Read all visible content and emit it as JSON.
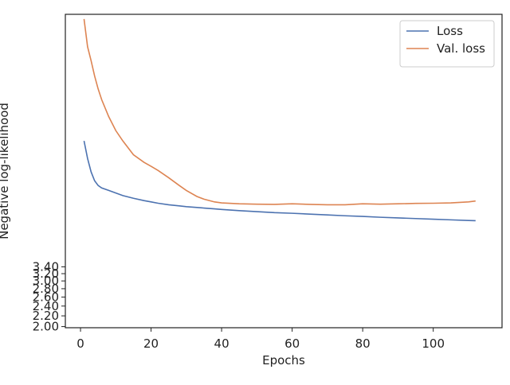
{
  "chart_data": {
    "type": "line",
    "x_label": "Epochs",
    "y_label": "Negative log-likelihood",
    "x": [
      1,
      2,
      3,
      4,
      5,
      6,
      8,
      10,
      12,
      15,
      18,
      20,
      22,
      25,
      28,
      30,
      33,
      35,
      38,
      40,
      45,
      50,
      55,
      60,
      65,
      70,
      75,
      80,
      85,
      90,
      95,
      100,
      105,
      110,
      112
    ],
    "series": [
      {
        "name": "Loss",
        "color": "#4c72b0",
        "values": [
          10.4,
          8.9,
          7.9,
          7.3,
          7.0,
          6.85,
          6.7,
          6.55,
          6.4,
          6.25,
          6.12,
          6.05,
          5.98,
          5.9,
          5.84,
          5.8,
          5.76,
          5.73,
          5.69,
          5.66,
          5.6,
          5.55,
          5.5,
          5.47,
          5.43,
          5.39,
          5.35,
          5.32,
          5.28,
          5.25,
          5.22,
          5.19,
          5.16,
          5.13,
          5.12
        ]
      },
      {
        "name": "Val. loss",
        "color": "#dd8452",
        "values": [
          30.7,
          24,
          21.2,
          18.5,
          16.5,
          15,
          12.9,
          11.4,
          10.4,
          9.2,
          8.6,
          8.3,
          8.0,
          7.5,
          7.0,
          6.7,
          6.35,
          6.2,
          6.05,
          6.0,
          5.95,
          5.93,
          5.92,
          5.95,
          5.92,
          5.9,
          5.9,
          5.95,
          5.93,
          5.95,
          5.97,
          5.98,
          6.0,
          6.05,
          6.1
        ]
      }
    ],
    "xlim": [
      -4.3,
      119.5
    ],
    "xticks": [
      0,
      20,
      40,
      60,
      80,
      100
    ],
    "ylim": [
      1.98,
      32
    ],
    "log_y": true,
    "yticks": [
      {
        "value": 2,
        "label": "2.00"
      },
      {
        "value": 2.2,
        "label": "2.20"
      },
      {
        "value": 2.4,
        "label": "2.40"
      },
      {
        "value": 2.6,
        "label": "2.60"
      },
      {
        "value": 2.8,
        "label": "2.80"
      },
      {
        "value": 3,
        "label": "3.00"
      },
      {
        "value": 3.2,
        "label": "3.20"
      },
      {
        "value": 3.4,
        "label": "3.40"
      }
    ],
    "legend": "upper right"
  }
}
